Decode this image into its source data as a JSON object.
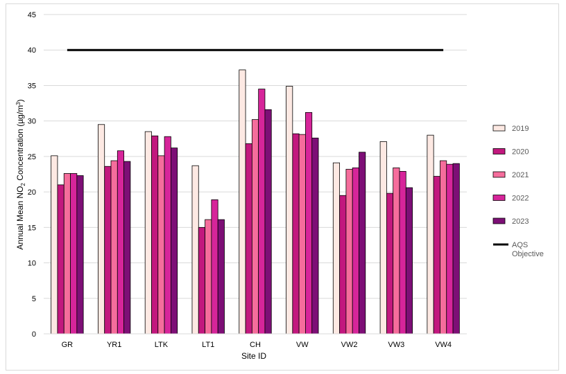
{
  "chart_data": {
    "type": "bar",
    "xlabel": "Site ID",
    "ylabel": {
      "prefix": "Annual Mean NO",
      "sub": "2",
      "middle": " Concentration (µg/m",
      "sup": "3",
      "suffix": ")"
    },
    "ylim": [
      0,
      45
    ],
    "yticks": [
      "0",
      "5",
      "10",
      "15",
      "20",
      "25",
      "30",
      "35",
      "40",
      "45"
    ],
    "categories": [
      "GR",
      "YR1",
      "LTK",
      "LT1",
      "CH",
      "VW",
      "VW2",
      "VW3",
      "VW4"
    ],
    "series": [
      {
        "name": "2019",
        "color": "#fde9e3",
        "values": [
          25.1,
          29.5,
          28.5,
          23.7,
          37.2,
          34.9,
          24.1,
          27.1,
          28.0
        ]
      },
      {
        "name": "2020",
        "color": "#c2187e",
        "values": [
          21.0,
          23.6,
          27.9,
          15.0,
          26.8,
          28.2,
          19.5,
          19.8,
          22.2
        ]
      },
      {
        "name": "2021",
        "color": "#f56d9c",
        "values": [
          22.6,
          24.4,
          25.1,
          16.1,
          30.2,
          28.1,
          23.2,
          23.4,
          24.4
        ]
      },
      {
        "name": "2022",
        "color": "#d6259a",
        "values": [
          22.6,
          25.8,
          27.8,
          18.9,
          34.5,
          31.2,
          23.4,
          22.9,
          23.9
        ]
      },
      {
        "name": "2023",
        "color": "#7d0f76",
        "values": [
          22.3,
          24.3,
          26.2,
          16.1,
          31.6,
          27.6,
          25.6,
          20.6,
          24.0
        ]
      }
    ],
    "reference_line": {
      "name_line1": "AQS",
      "name_line2": "Objective",
      "value": 40,
      "color": "#000000"
    },
    "grid": true,
    "legend_position": "right"
  }
}
